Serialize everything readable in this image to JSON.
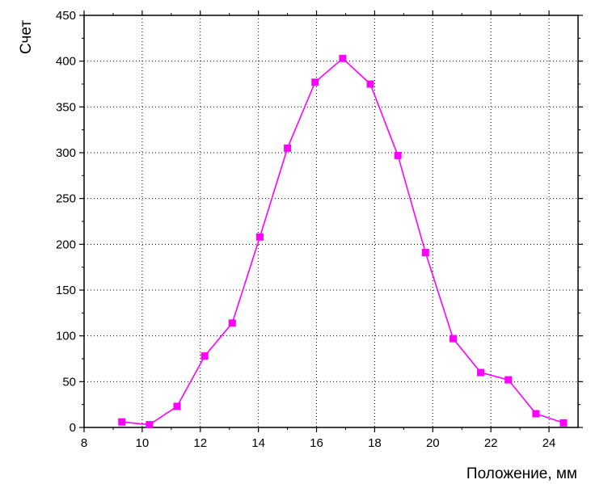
{
  "chart_data": {
    "type": "line",
    "title": "",
    "xlabel": "Положение, мм",
    "ylabel": "Счет",
    "xlim": [
      8,
      25
    ],
    "ylim": [
      0,
      450
    ],
    "xticks": [
      8,
      10,
      12,
      14,
      16,
      18,
      20,
      22,
      24
    ],
    "yticks": [
      0,
      50,
      100,
      150,
      200,
      250,
      300,
      350,
      400,
      450
    ],
    "grid": true,
    "legend": "none",
    "series": [
      {
        "color": "#ff00ff",
        "marker": "square",
        "x": [
          9.3,
          10.25,
          11.2,
          12.15,
          13.1,
          14.05,
          15.0,
          15.95,
          16.9,
          17.85,
          18.8,
          19.75,
          20.7,
          21.65,
          22.6,
          23.55,
          24.5
        ],
        "y": [
          6,
          3,
          23,
          78,
          114,
          208,
          305,
          377,
          403,
          375,
          297,
          191,
          97,
          60,
          52,
          15,
          5
        ]
      }
    ]
  }
}
